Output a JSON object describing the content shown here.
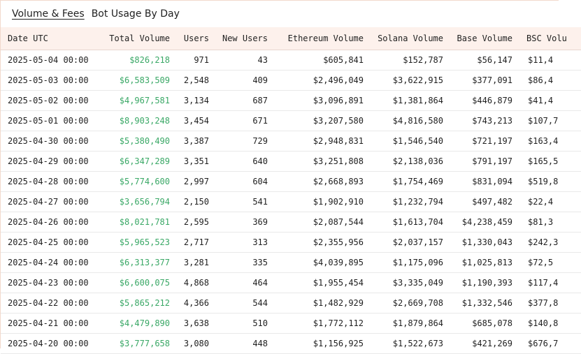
{
  "tabs": [
    {
      "label": "Volume & Fees",
      "active": true
    },
    {
      "label": "Bot Usage By Day",
      "active": false
    }
  ],
  "table": {
    "columns": [
      "Date UTC",
      "Total Volume",
      "Users",
      "New Users",
      "Ethereum Volume",
      "Solana Volume",
      "Base Volume",
      "BSC Volu"
    ],
    "rows": [
      [
        "2025-05-04 00:00",
        "$826,218",
        "971",
        "43",
        "$605,841",
        "$152,787",
        "$56,147",
        "$11,4"
      ],
      [
        "2025-05-03 00:00",
        "$6,583,509",
        "2,548",
        "409",
        "$2,496,049",
        "$3,622,915",
        "$377,091",
        "$86,4"
      ],
      [
        "2025-05-02 00:00",
        "$4,967,581",
        "3,134",
        "687",
        "$3,096,891",
        "$1,381,864",
        "$446,879",
        "$41,4"
      ],
      [
        "2025-05-01 00:00",
        "$8,903,248",
        "3,454",
        "671",
        "$3,207,580",
        "$4,816,580",
        "$743,213",
        "$107,7"
      ],
      [
        "2025-04-30 00:00",
        "$5,380,490",
        "3,387",
        "729",
        "$2,948,831",
        "$1,546,540",
        "$721,197",
        "$163,4"
      ],
      [
        "2025-04-29 00:00",
        "$6,347,289",
        "3,351",
        "640",
        "$3,251,808",
        "$2,138,036",
        "$791,197",
        "$165,5"
      ],
      [
        "2025-04-28 00:00",
        "$5,774,600",
        "2,997",
        "604",
        "$2,668,893",
        "$1,754,469",
        "$831,094",
        "$519,8"
      ],
      [
        "2025-04-27 00:00",
        "$3,656,794",
        "2,150",
        "541",
        "$1,902,910",
        "$1,232,794",
        "$497,482",
        "$22,4"
      ],
      [
        "2025-04-26 00:00",
        "$8,021,781",
        "2,595",
        "369",
        "$2,087,544",
        "$1,613,704",
        "$4,238,459",
        "$81,3"
      ],
      [
        "2025-04-25 00:00",
        "$5,965,523",
        "2,717",
        "313",
        "$2,355,956",
        "$2,037,157",
        "$1,330,043",
        "$242,3"
      ],
      [
        "2025-04-24 00:00",
        "$6,313,377",
        "3,281",
        "335",
        "$4,039,895",
        "$1,175,096",
        "$1,025,813",
        "$72,5"
      ],
      [
        "2025-04-23 00:00",
        "$6,600,075",
        "4,868",
        "464",
        "$1,955,454",
        "$3,335,049",
        "$1,190,393",
        "$117,4"
      ],
      [
        "2025-04-22 00:00",
        "$5,865,212",
        "4,366",
        "544",
        "$1,482,929",
        "$2,669,708",
        "$1,332,546",
        "$377,8"
      ],
      [
        "2025-04-21 00:00",
        "$4,479,890",
        "3,638",
        "510",
        "$1,772,112",
        "$1,879,864",
        "$685,078",
        "$140,8"
      ],
      [
        "2025-04-20 00:00",
        "$3,777,658",
        "3,080",
        "448",
        "$1,156,925",
        "$1,522,673",
        "$421,269",
        "$676,7"
      ]
    ]
  },
  "colors": {
    "header_bg": "#fdf1ec",
    "total_volume": "#3aa866",
    "frame_border": "#f2d9cc"
  }
}
